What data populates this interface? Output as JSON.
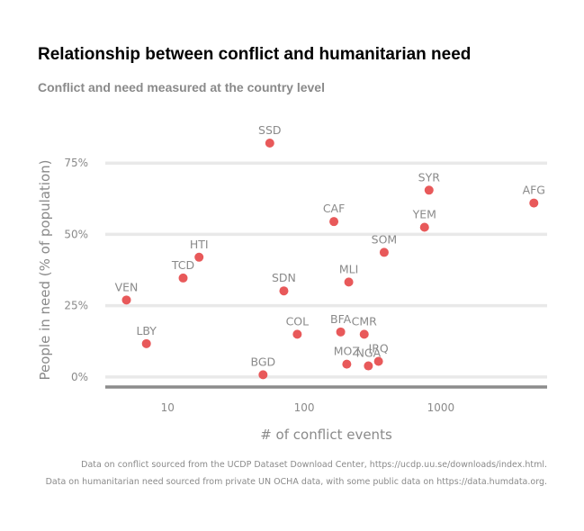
{
  "chart_data": {
    "type": "scatter",
    "title": "Relationship between conflict and humanitarian need",
    "subtitle": "Conflict and need measured at the country level",
    "xlabel": "# of conflict events",
    "ylabel": "People in need (% of population)",
    "x_scale": "log",
    "xlim": [
      3.5,
      6000
    ],
    "ylim": [
      -0.035,
      0.88
    ],
    "x_ticks": [
      10,
      100,
      1000
    ],
    "x_tick_labels": [
      "10",
      "100",
      "1000"
    ],
    "y_ticks": [
      0,
      0.25,
      0.5,
      0.75
    ],
    "y_tick_labels": [
      "0%",
      "25%",
      "50%",
      "75%"
    ],
    "grid": "horizontal",
    "point_color": "#e8595a",
    "points": [
      {
        "label": "SSD",
        "x": 56,
        "y": 0.82
      },
      {
        "label": "SYR",
        "x": 820,
        "y": 0.655
      },
      {
        "label": "AFG",
        "x": 4800,
        "y": 0.61
      },
      {
        "label": "CAF",
        "x": 165,
        "y": 0.545
      },
      {
        "label": "YEM",
        "x": 760,
        "y": 0.525
      },
      {
        "label": "SOM",
        "x": 385,
        "y": 0.437
      },
      {
        "label": "HTI",
        "x": 17,
        "y": 0.42
      },
      {
        "label": "TCD",
        "x": 13,
        "y": 0.347
      },
      {
        "label": "MLI",
        "x": 212,
        "y": 0.333
      },
      {
        "label": "SDN",
        "x": 71,
        "y": 0.302
      },
      {
        "label": "VEN",
        "x": 5,
        "y": 0.27
      },
      {
        "label": "COL",
        "x": 89,
        "y": 0.15
      },
      {
        "label": "BFA",
        "x": 185,
        "y": 0.158
      },
      {
        "label": "CMR",
        "x": 275,
        "y": 0.15
      },
      {
        "label": "LBY",
        "x": 7,
        "y": 0.117
      },
      {
        "label": "IRQ",
        "x": 350,
        "y": 0.055
      },
      {
        "label": "MOZ",
        "x": 205,
        "y": 0.045
      },
      {
        "label": "NGA",
        "x": 295,
        "y": 0.039
      },
      {
        "label": "BGD",
        "x": 50,
        "y": 0.008
      }
    ],
    "caption": [
      "Data on conflict sourced from the UCDP Dataset Download Center, https://ucdp.uu.se/downloads/index.html.",
      "Data on humanitarian need sourced from private UN OCHA data, with some public data on https://data.humdata.org."
    ]
  }
}
